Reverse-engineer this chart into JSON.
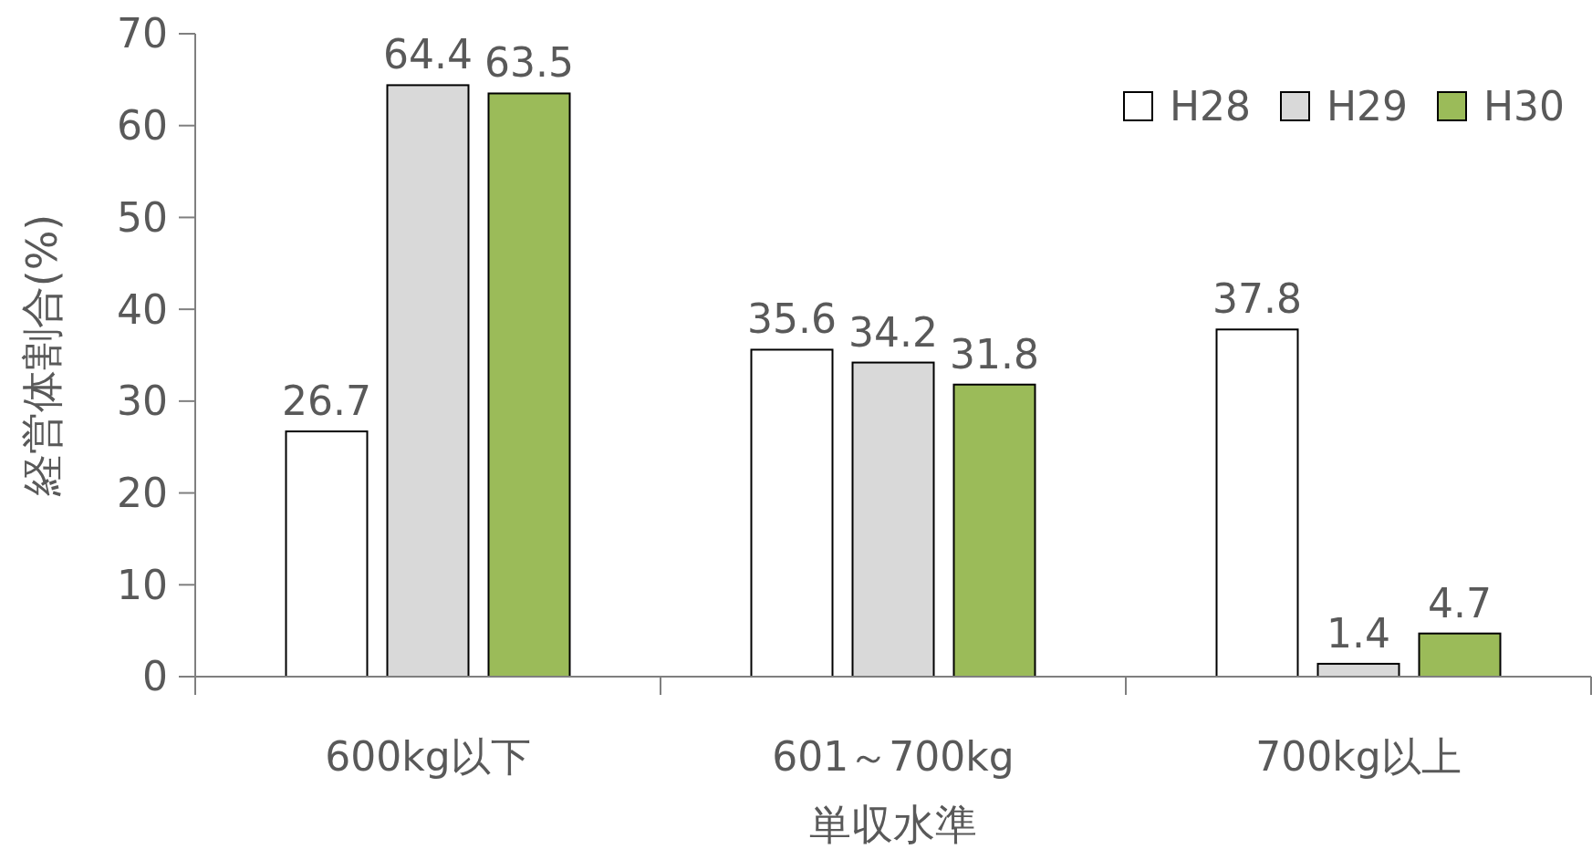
{
  "chart_data": {
    "type": "bar",
    "xlabel": "単収水準",
    "ylabel": "経営体割合(%)",
    "categories": [
      "600kg以下",
      "601～700kg",
      "700kg以上"
    ],
    "series": [
      {
        "name": "H28",
        "color": "#ffffff",
        "values": [
          26.7,
          35.6,
          37.8
        ]
      },
      {
        "name": "H29",
        "color": "#d9d9d9",
        "values": [
          64.4,
          34.2,
          1.4
        ]
      },
      {
        "name": "H30",
        "color": "#9bbb59",
        "values": [
          63.5,
          31.8,
          4.7
        ]
      }
    ],
    "ylim": [
      0,
      70
    ],
    "yticks": [
      0,
      10,
      20,
      30,
      40,
      50,
      60,
      70
    ],
    "data_labels": true,
    "legend": "top right",
    "grid": false
  }
}
